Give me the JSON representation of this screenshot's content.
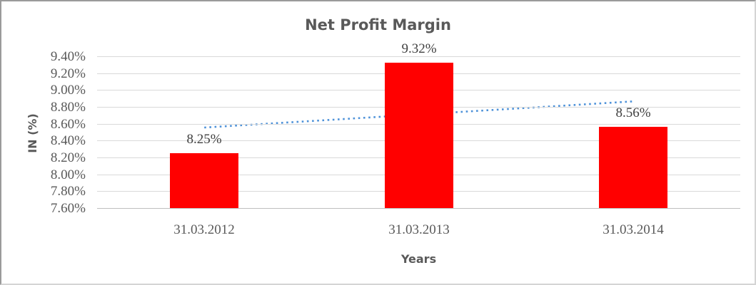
{
  "window": {
    "background": "#ffffff",
    "border_dark": "#9a9a9a",
    "border_light": "#d4d4d4"
  },
  "chart_data": {
    "type": "bar",
    "title": "Net Profit Margin",
    "xlabel": "Years",
    "ylabel": "IN (%)",
    "categories": [
      "31.03.2012",
      "31.03.2013",
      "31.03.2014"
    ],
    "series": [
      {
        "name": "Net Profit Margin",
        "values": [
          8.25,
          9.32,
          8.56
        ],
        "color": "#FF0000"
      }
    ],
    "data_labels": [
      "8.25%",
      "9.32%",
      "8.56%"
    ],
    "ylim": [
      7.6,
      9.4
    ],
    "ytick_step": 0.2,
    "ytick_labels": [
      "9.40%",
      "9.20%",
      "9.00%",
      "8.80%",
      "8.60%",
      "8.40%",
      "8.20%",
      "8.00%",
      "7.80%",
      "7.60%"
    ],
    "grid": true,
    "legend_position": "none",
    "gridline_color": "#d9d9d9",
    "axis_line_color": "#bfbfbf",
    "axis_text_color": "#595959",
    "data_label_color": "#404040",
    "trendline": {
      "type": "linear",
      "style": "dotted",
      "color": "#4e92d9",
      "start_value": 8.555,
      "end_value": 8.865
    }
  }
}
